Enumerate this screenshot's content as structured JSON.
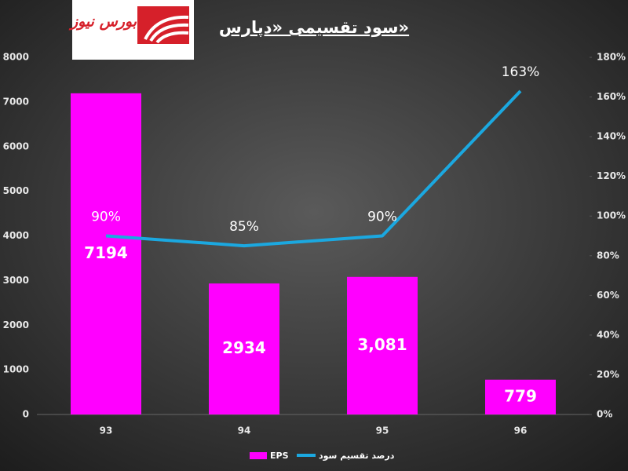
{
  "logo": {
    "text": "بورس نیوز"
  },
  "chart_data": {
    "type": "bar-line",
    "title": "سود تقسیمی «دپارس»",
    "categories": [
      "93",
      "94",
      "95",
      "96"
    ],
    "series": [
      {
        "name": "EPS",
        "type": "bar",
        "color": "#ff00ff",
        "values": [
          7194,
          2934,
          3081,
          779
        ],
        "value_labels": [
          "7194",
          "2934",
          "3,081",
          "779"
        ]
      },
      {
        "name": "درصد تقسیم سود",
        "type": "line",
        "axis": "y2",
        "color": "#1ba8e0",
        "values": [
          90,
          85,
          90,
          163
        ],
        "value_labels": [
          "90%",
          "85%",
          "90%",
          "163%"
        ]
      }
    ],
    "ylim": [
      0,
      8000
    ],
    "yticks": [
      0,
      1000,
      2000,
      3000,
      4000,
      5000,
      6000,
      7000,
      8000
    ],
    "y2lim": [
      0,
      180
    ],
    "y2ticks": [
      {
        "value": 0,
        "label": "0%"
      },
      {
        "value": 20,
        "label": "20%"
      },
      {
        "value": 40,
        "label": "40%"
      },
      {
        "value": 60,
        "label": "60%"
      },
      {
        "value": 80,
        "label": "80%"
      },
      {
        "value": 100,
        "label": "100%"
      },
      {
        "value": 120,
        "label": "120%"
      },
      {
        "value": 140,
        "label": "140%"
      },
      {
        "value": 160,
        "label": "160%"
      },
      {
        "value": 180,
        "label": "180%"
      }
    ],
    "grid": false,
    "legend": "bottom"
  }
}
